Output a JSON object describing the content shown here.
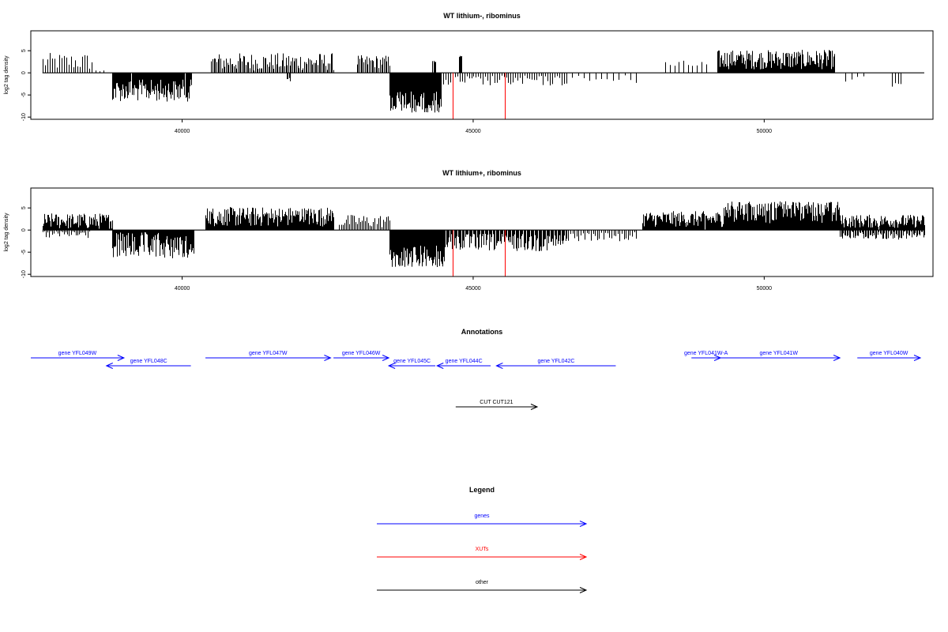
{
  "colors": {
    "gene": "#0000ff",
    "xut": "#ff0000",
    "other": "#000000",
    "signal": "#000000",
    "highlight": "#ff0000"
  },
  "chart_data": [
    {
      "type": "bar",
      "title": "WT lithium-, ribominus",
      "ylabel": "log2 tag density",
      "xlim": [
        37400,
        52900
      ],
      "ylim": [
        -10.5,
        9.5
      ],
      "xticks": [
        40000,
        45000,
        50000
      ],
      "yticks": [
        -10,
        -5,
        0,
        5
      ],
      "regions": [
        {
          "from": 37600,
          "to": 38450,
          "sign": 1,
          "mean": 2.5,
          "amp": 2,
          "density": 0.35
        },
        {
          "from": 38450,
          "to": 38650,
          "sign": 1,
          "mean": 0.8,
          "amp": 1,
          "density": 0.3
        },
        {
          "from": 38800,
          "to": 40150,
          "sign": -1,
          "mean": 4,
          "amp": 2.5,
          "density": 1
        },
        {
          "from": 40500,
          "to": 42600,
          "sign": 1,
          "mean": 2.5,
          "amp": 2,
          "density": 0.6
        },
        {
          "from": 41800,
          "to": 41850,
          "sign": -1,
          "mean": 1.5,
          "amp": 0.5,
          "density": 1
        },
        {
          "from": 43000,
          "to": 43560,
          "sign": 1,
          "mean": 2.5,
          "amp": 1.5,
          "density": 0.6
        },
        {
          "from": 43560,
          "to": 44450,
          "sign": -1,
          "mean": 6.5,
          "amp": 2.5,
          "density": 1.6
        },
        {
          "from": 44450,
          "to": 46600,
          "sign": -1,
          "mean": 1.8,
          "amp": 1.2,
          "density": 0.35
        },
        {
          "from": 46600,
          "to": 47800,
          "sign": -1,
          "mean": 1.5,
          "amp": 1,
          "density": 0.15
        },
        {
          "from": 44300,
          "to": 44350,
          "sign": 1,
          "mean": 2.5,
          "amp": 0.3,
          "density": 1
        },
        {
          "from": 44750,
          "to": 44800,
          "sign": 1,
          "mean": 3.8,
          "amp": 0.3,
          "density": 1
        },
        {
          "from": 48300,
          "to": 49000,
          "sign": 1,
          "mean": 1.8,
          "amp": 1,
          "density": 0.2
        },
        {
          "from": 49200,
          "to": 51200,
          "sign": 1,
          "mean": 3,
          "amp": 2.2,
          "density": 1.1
        },
        {
          "from": 51400,
          "to": 51700,
          "sign": -1,
          "mean": 1.2,
          "amp": 1,
          "density": 0.2
        },
        {
          "from": 52200,
          "to": 52350,
          "sign": -1,
          "mean": 2,
          "amp": 1.2,
          "density": 0.4
        }
      ],
      "highlight_x": [
        44650,
        45550
      ],
      "highlight_y": -10.4
    },
    {
      "type": "bar",
      "title": "WT lithium+, ribominus",
      "ylabel": "log2 tag density",
      "xlim": [
        37400,
        52900
      ],
      "ylim": [
        -10.5,
        9.5
      ],
      "xticks": [
        40000,
        45000,
        50000
      ],
      "yticks": [
        -10,
        -5,
        0,
        5
      ],
      "regions": [
        {
          "from": 37600,
          "to": 38800,
          "sign": 1,
          "mean": 2,
          "amp": 1.8,
          "density": 1.1
        },
        {
          "from": 37600,
          "to": 38400,
          "sign": -1,
          "mean": 1,
          "amp": 1,
          "density": 0.5
        },
        {
          "from": 38800,
          "to": 40200,
          "sign": -1,
          "mean": 3.5,
          "amp": 3,
          "density": 1.2
        },
        {
          "from": 40400,
          "to": 42600,
          "sign": 1,
          "mean": 3,
          "amp": 2.2,
          "density": 1.3
        },
        {
          "from": 42700,
          "to": 43560,
          "sign": 1,
          "mean": 2,
          "amp": 1.5,
          "density": 0.5
        },
        {
          "from": 43560,
          "to": 44500,
          "sign": -1,
          "mean": 6,
          "amp": 2.5,
          "density": 1.6
        },
        {
          "from": 44500,
          "to": 46600,
          "sign": -1,
          "mean": 2.8,
          "amp": 2,
          "density": 0.8
        },
        {
          "from": 46600,
          "to": 47800,
          "sign": -1,
          "mean": 1.5,
          "amp": 1,
          "density": 0.4
        },
        {
          "from": 47900,
          "to": 49300,
          "sign": 1,
          "mean": 2.5,
          "amp": 1.8,
          "density": 1
        },
        {
          "from": 49300,
          "to": 51300,
          "sign": 1,
          "mean": 4,
          "amp": 2.5,
          "density": 1.6
        },
        {
          "from": 51300,
          "to": 52750,
          "sign": 1,
          "mean": 2,
          "amp": 1.5,
          "density": 1
        },
        {
          "from": 51300,
          "to": 52750,
          "sign": -1,
          "mean": 1.2,
          "amp": 1,
          "density": 0.7
        }
      ],
      "highlight_x": [
        44650,
        45550
      ],
      "highlight_y": -10.4
    }
  ],
  "annotations": {
    "title": "Annotations",
    "features": [
      {
        "label": "gene YFL049W",
        "from": 37400,
        "to": 39000,
        "row": 0,
        "dir": 1,
        "type": "gene"
      },
      {
        "label": "gene YFL048C",
        "from": 38700,
        "to": 40150,
        "row": 1,
        "dir": -1,
        "type": "gene"
      },
      {
        "label": "gene YFL047W",
        "from": 40400,
        "to": 42550,
        "row": 0,
        "dir": 1,
        "type": "gene"
      },
      {
        "label": "gene YFL046W",
        "from": 42600,
        "to": 43550,
        "row": 0,
        "dir": 1,
        "type": "gene"
      },
      {
        "label": "gene YFL045C",
        "from": 43550,
        "to": 44350,
        "row": 1,
        "dir": -1,
        "type": "gene"
      },
      {
        "label": "gene YFL044C",
        "from": 44380,
        "to": 45300,
        "row": 1,
        "dir": -1,
        "type": "gene"
      },
      {
        "label": "gene YFL042C",
        "from": 45400,
        "to": 47450,
        "row": 1,
        "dir": -1,
        "type": "gene"
      },
      {
        "label": "gene YFL041W-A",
        "from": 48750,
        "to": 49250,
        "row": 0,
        "dir": 1,
        "type": "gene"
      },
      {
        "label": "gene YFL041W",
        "from": 49200,
        "to": 51300,
        "row": 0,
        "dir": 1,
        "type": "gene"
      },
      {
        "label": "gene YFL040W",
        "from": 51600,
        "to": 53250,
        "row": 0,
        "dir": 1,
        "type": "gene"
      },
      {
        "label": "CUT CUT121",
        "from": 44700,
        "to": 46100,
        "row": 2,
        "dir": 1,
        "type": "other"
      }
    ]
  },
  "legend": {
    "title": "Legend",
    "items": [
      {
        "label": "genes",
        "type": "gene"
      },
      {
        "label": "XUTs",
        "type": "xut"
      },
      {
        "label": "other",
        "type": "other"
      }
    ]
  }
}
